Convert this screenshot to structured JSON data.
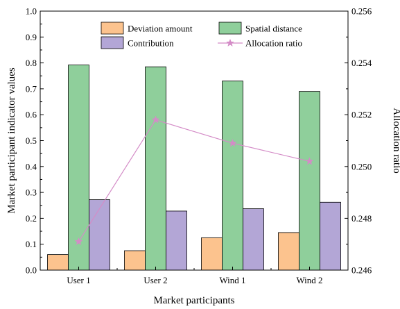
{
  "chart_data": {
    "type": "bar",
    "categories": [
      "User 1",
      "User 2",
      "Wind 1",
      "Wind 2"
    ],
    "series": [
      {
        "name": "Deviation amount",
        "values": [
          0.06,
          0.075,
          0.125,
          0.145
        ],
        "color": "#fcc38e",
        "axis": "left",
        "kind": "bar"
      },
      {
        "name": "Spatial distance",
        "values": [
          0.792,
          0.785,
          0.73,
          0.69
        ],
        "color": "#8fcf9b",
        "axis": "left",
        "kind": "bar"
      },
      {
        "name": "Contribution",
        "values": [
          0.272,
          0.228,
          0.237,
          0.262
        ],
        "color": "#b3a6d6",
        "axis": "left",
        "kind": "bar"
      },
      {
        "name": "Allocation ratio",
        "values": [
          0.2471,
          0.2518,
          0.2509,
          0.2502
        ],
        "color": "#d48cc7",
        "axis": "right",
        "kind": "line",
        "marker": "star"
      }
    ],
    "xlabel": "Market participants",
    "ylabel": "Market participant indicator values",
    "y2label": "Allocation ratio",
    "ylim": [
      0,
      1.0
    ],
    "y2lim": [
      0.246,
      0.256
    ],
    "yticks": [
      "0.0",
      "0.1",
      "0.2",
      "0.3",
      "0.4",
      "0.5",
      "0.6",
      "0.7",
      "0.8",
      "0.9",
      "1.0"
    ],
    "y2ticks": [
      "0.246",
      "0.248",
      "0.250",
      "0.252",
      "0.254",
      "0.256"
    ],
    "legend": {
      "position": "top-center",
      "columns": 2
    },
    "grid": false
  }
}
